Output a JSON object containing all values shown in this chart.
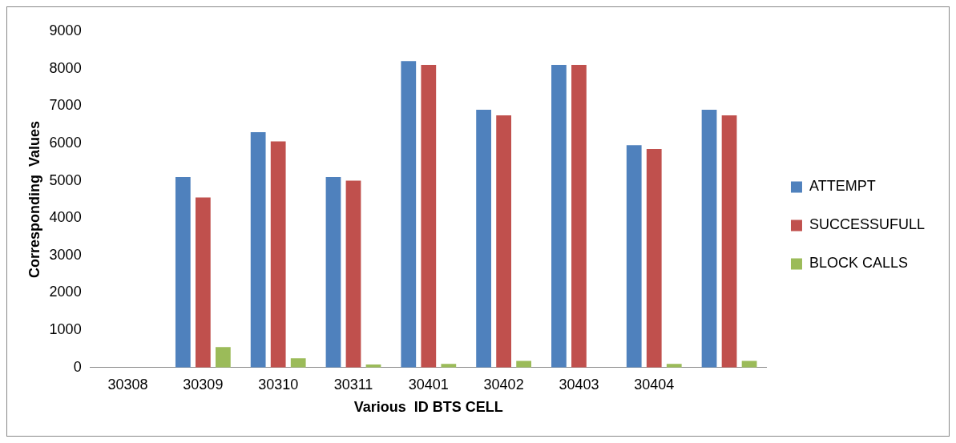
{
  "chart_data": {
    "type": "bar",
    "xlabel": "Various  ID BTS CELL",
    "ylabel": "Corresponding  Values",
    "categories": [
      "30308",
      "30309",
      "30310",
      "30311",
      "30401",
      "30402",
      "30403",
      "30404",
      null
    ],
    "series": [
      {
        "name": "ATTEMPT",
        "color": "#4f81bd",
        "values": [
          0,
          5100,
          6300,
          5100,
          8200,
          6900,
          8100,
          5950,
          6900
        ]
      },
      {
        "name": "SUCCESSUFULL",
        "color": "#c0504d",
        "values": [
          0,
          4550,
          6050,
          5000,
          8100,
          6750,
          8100,
          5850,
          6750
        ]
      },
      {
        "name": "BLOCK CALLS",
        "color": "#9bbb59",
        "values": [
          0,
          550,
          250,
          80,
          100,
          180,
          0,
          100,
          180
        ]
      }
    ],
    "ylim": [
      0,
      9000
    ],
    "yticks": [
      0,
      1000,
      2000,
      3000,
      4000,
      5000,
      6000,
      7000,
      8000,
      9000
    ],
    "grid": false,
    "legend": "right"
  }
}
